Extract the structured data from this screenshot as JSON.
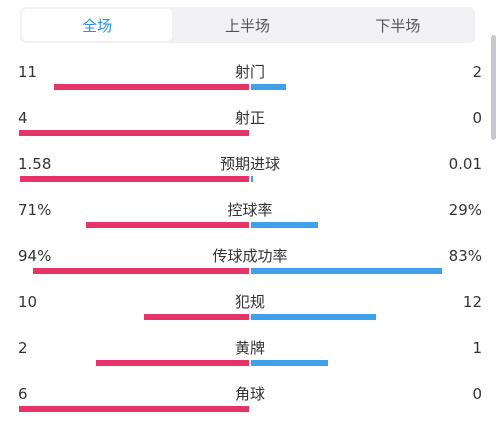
{
  "tabs": [
    "全场",
    "上半场",
    "下半场"
  ],
  "active_tab": 0,
  "colors": {
    "home": "#e73468",
    "away": "#3fa0ec",
    "active_tab": "#2f8fe3"
  },
  "stats": [
    {
      "label": "射门",
      "home": "11",
      "away": "2",
      "home_share": 0.846,
      "away_share": 0.154
    },
    {
      "label": "射正",
      "home": "4",
      "away": "0",
      "home_share": 1.0,
      "away_share": 0.0
    },
    {
      "label": "预期进球",
      "home": "1.58",
      "away": "0.01",
      "home_share": 0.994,
      "away_share": 0.006
    },
    {
      "label": "控球率",
      "home": "71%",
      "away": "29%",
      "home_share": 0.71,
      "away_share": 0.29
    },
    {
      "label": "传球成功率",
      "home": "94%",
      "away": "83%",
      "home_share": 0.94,
      "away_share": 0.83
    },
    {
      "label": "犯规",
      "home": "10",
      "away": "12",
      "home_share": 0.455,
      "away_share": 0.545
    },
    {
      "label": "黄牌",
      "home": "2",
      "away": "1",
      "home_share": 0.667,
      "away_share": 0.333
    },
    {
      "label": "角球",
      "home": "6",
      "away": "0",
      "home_share": 1.0,
      "away_share": 0.0
    }
  ]
}
